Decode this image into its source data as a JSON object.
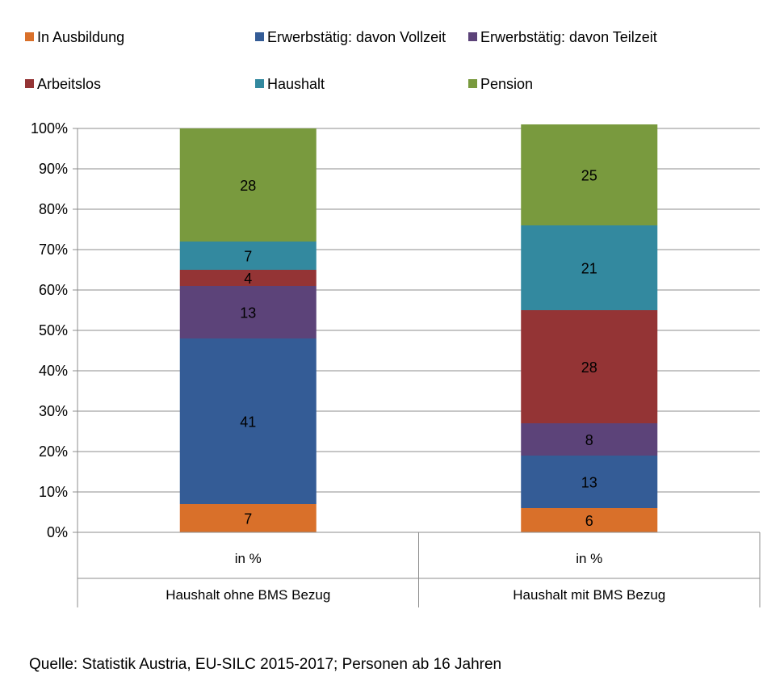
{
  "chart_data": {
    "type": "bar",
    "stacked": true,
    "categories": [
      "Haushalt ohne BMS Bezug",
      "Haushalt mit BMS Bezug"
    ],
    "subcategories": [
      "in %",
      "in %"
    ],
    "series": [
      {
        "name": "In Ausbildung",
        "color": "#D9702A",
        "values": [
          7,
          6
        ]
      },
      {
        "name": "Erwerbstätig: davon Vollzeit",
        "color": "#345C96",
        "values": [
          41,
          13
        ]
      },
      {
        "name": "Erwerbstätig: davon Teilzeit",
        "color": "#5C4379",
        "values": [
          13,
          8
        ]
      },
      {
        "name": "Arbeitslos",
        "color": "#943435",
        "values": [
          4,
          28
        ]
      },
      {
        "name": "Haushalt",
        "color": "#33899F",
        "values": [
          7,
          21
        ]
      },
      {
        "name": "Pension",
        "color": "#799A3E",
        "values": [
          28,
          25
        ]
      }
    ],
    "ylim": [
      0,
      100
    ],
    "yticks": [
      "0%",
      "10%",
      "20%",
      "30%",
      "40%",
      "50%",
      "60%",
      "70%",
      "80%",
      "90%",
      "100%"
    ],
    "grid": true,
    "legend_position": "top"
  },
  "source": "Quelle: Statistik Austria, EU-SILC 2015-2017; Personen ab 16 Jahren"
}
